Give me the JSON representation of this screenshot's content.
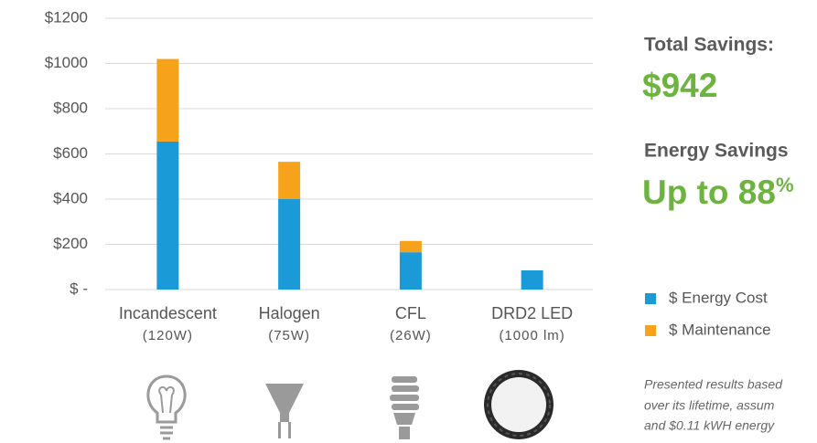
{
  "chart_data": {
    "type": "stacked-bar",
    "categories": [
      "Incandescent",
      "Halogen",
      "CFL",
      "DRD2 LED"
    ],
    "category_sublabels": [
      "(120W)",
      "(75W)",
      "(26W)",
      "(1000 lm)"
    ],
    "series": [
      {
        "name": "$ Energy Cost",
        "color": "#1a9ad6",
        "values": [
          655,
          400,
          165,
          85
        ]
      },
      {
        "name": "$ Maintenance",
        "color": "#f7a21b",
        "values": [
          365,
          165,
          50,
          0
        ]
      }
    ],
    "ylim": [
      0,
      1200
    ],
    "yticks": [
      {
        "value": 0,
        "label": "$ -"
      },
      {
        "value": 200,
        "label": "$200"
      },
      {
        "value": 400,
        "label": "$400"
      },
      {
        "value": 600,
        "label": "$600"
      },
      {
        "value": 800,
        "label": "$800"
      },
      {
        "value": 1000,
        "label": "$1000"
      },
      {
        "value": 1200,
        "label": "$1200"
      }
    ],
    "grid": true,
    "legend": "right"
  },
  "panel": {
    "total_label": "Total Savings:",
    "total_value": "$942",
    "energy_label": "Energy Savings",
    "energy_value": "Up to 88",
    "energy_unit": "%",
    "note": [
      "Presented results based",
      "over its lifetime, assum",
      "and $0.11 kWH energy"
    ]
  }
}
